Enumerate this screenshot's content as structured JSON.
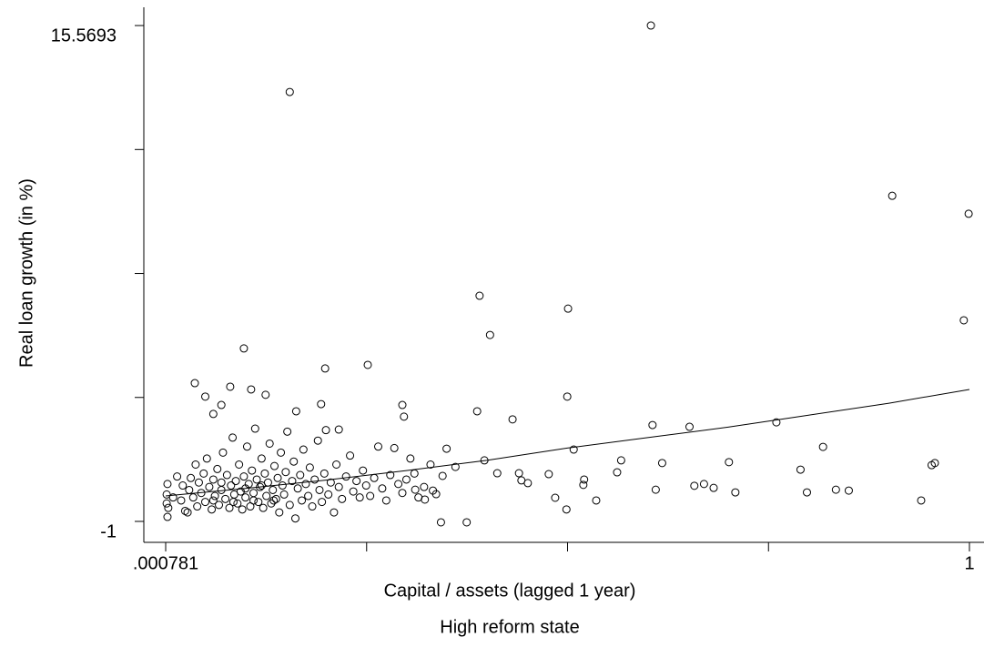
{
  "chart_data": {
    "type": "scatter",
    "y_label": "Real loan growth (in %)",
    "x_label": "Capital / assets (lagged 1 year)",
    "subtitle": "High reform state",
    "color": "#000000",
    "xlim": [
      -0.0264,
      1.0181
    ],
    "ylim": [
      -1.7,
      16.18
    ],
    "xticks": [
      {
        "value": 0.000781,
        "label": ".000781"
      },
      {
        "value": 0.250586,
        "label": null
      },
      {
        "value": 0.500391,
        "label": null
      },
      {
        "value": 0.750195,
        "label": null
      },
      1
    ],
    "yticks": [
      -1,
      {
        "value": 3.142325,
        "label": null
      },
      {
        "value": 7.28465,
        "label": null
      },
      {
        "value": 11.426975,
        "label": null
      },
      15.5693
    ],
    "points": {
      "x": [
        0.604,
        0.155,
        0.904,
        0.999,
        0.993,
        0.391,
        0.501,
        0.404,
        0.098,
        0.199,
        0.252,
        0.037,
        0.081,
        0.107,
        0.05,
        0.125,
        0.5,
        0.194,
        0.295,
        0.388,
        0.07,
        0.297,
        0.06,
        0.163,
        0.432,
        0.76,
        0.606,
        0.652,
        0.216,
        0.818,
        0.35,
        0.508,
        0.567,
        0.618,
        0.701,
        0.397,
        0.957,
        0.953,
        0.79,
        0.562,
        0.477,
        0.44,
        0.443,
        0.451,
        0.521,
        0.52,
        0.413,
        0.345,
        0.658,
        0.67,
        0.682,
        0.61,
        0.709,
        0.798,
        0.834,
        0.85,
        0.94,
        0.536,
        0.485,
        0.499,
        0.343,
        0.375,
        0.323,
        0.333,
        0.337,
        0.361,
        0.311,
        0.002,
        0.002,
        0.003,
        0.003,
        0.004,
        0.01,
        0.015,
        0.02,
        0.022,
        0.025,
        0.028,
        0.03,
        0.032,
        0.035,
        0.038,
        0.04,
        0.042,
        0.045,
        0.048,
        0.05,
        0.052,
        0.055,
        0.058,
        0.06,
        0.062,
        0.065,
        0.067,
        0.07,
        0.072,
        0.075,
        0.077,
        0.08,
        0.082,
        0.084,
        0.086,
        0.088,
        0.09,
        0.092,
        0.094,
        0.096,
        0.098,
        0.1,
        0.102,
        0.104,
        0.106,
        0.108,
        0.11,
        0.112,
        0.114,
        0.116,
        0.118,
        0.12,
        0.122,
        0.124,
        0.126,
        0.128,
        0.13,
        0.132,
        0.134,
        0.136,
        0.138,
        0.14,
        0.142,
        0.144,
        0.146,
        0.148,
        0.15,
        0.152,
        0.155,
        0.158,
        0.16,
        0.162,
        0.165,
        0.168,
        0.17,
        0.172,
        0.175,
        0.178,
        0.18,
        0.183,
        0.186,
        0.19,
        0.192,
        0.195,
        0.198,
        0.2,
        0.203,
        0.206,
        0.21,
        0.213,
        0.216,
        0.22,
        0.225,
        0.23,
        0.234,
        0.238,
        0.242,
        0.246,
        0.25,
        0.255,
        0.26,
        0.265,
        0.27,
        0.275,
        0.28,
        0.285,
        0.29,
        0.295,
        0.3,
        0.305,
        0.31,
        0.315,
        0.322,
        0.33,
        0.06,
        0.085,
        0.11,
        0.135,
        0.1,
        0.07,
        0.12
      ],
      "y": [
        15.57,
        13.35,
        9.88,
        9.28,
        5.72,
        6.54,
        6.11,
        5.23,
        4.78,
        4.11,
        4.23,
        3.62,
        3.5,
        3.41,
        3.17,
        3.23,
        3.17,
        2.92,
        2.89,
        2.68,
        2.89,
        2.5,
        2.59,
        2.68,
        2.41,
        2.31,
        2.22,
        2.16,
        2.07,
        1.49,
        1.43,
        1.4,
        1.04,
        0.95,
        0.98,
        1.04,
        0.95,
        0.88,
        0.73,
        0.64,
        0.58,
        0.61,
        0.37,
        0.28,
        0.4,
        0.22,
        0.61,
        0.52,
        0.19,
        0.25,
        0.12,
        0.06,
        -0.03,
        -0.03,
        0.06,
        0.03,
        -0.3,
        -0.3,
        -0.21,
        -0.6,
        -1.03,
        -1.03,
        -0.27,
        0.03,
        -0.09,
        0.82,
        0.06,
        -0.1,
        -0.4,
        -0.85,
        0.25,
        -0.55,
        -0.2,
        0.5,
        -0.3,
        0.2,
        -0.65,
        -0.7,
        0.05,
        0.45,
        -0.2,
        0.9,
        -0.5,
        0.3,
        -0.05,
        0.6,
        -0.35,
        1.1,
        0.15,
        -0.6,
        0.4,
        -0.15,
        0.75,
        -0.45,
        0.05,
        1.3,
        -0.25,
        0.55,
        -0.55,
        0.2,
        1.8,
        -0.1,
        0.35,
        -0.4,
        0.9,
        0.0,
        -0.6,
        0.5,
        -0.2,
        1.5,
        0.25,
        -0.5,
        0.7,
        -0.05,
        2.1,
        0.4,
        -0.35,
        0.15,
        1.1,
        -0.55,
        0.6,
        -0.15,
        0.3,
        1.6,
        -0.4,
        0.05,
        0.85,
        -0.25,
        0.45,
        -0.7,
        1.3,
        0.2,
        -0.1,
        0.65,
        2.0,
        -0.45,
        0.35,
        1.0,
        -0.9,
        0.1,
        0.55,
        -0.3,
        1.4,
        0.25,
        -0.15,
        0.8,
        -0.5,
        0.4,
        1.7,
        0.05,
        -0.35,
        0.6,
        2.05,
        -0.1,
        0.3,
        -0.7,
        0.9,
        0.15,
        -0.25,
        0.5,
        1.2,
        0.0,
        0.35,
        -0.2,
        0.7,
        0.2,
        -0.15,
        0.45,
        1.5,
        0.1,
        -0.3,
        0.55,
        1.45,
        0.25,
        -0.05,
        0.4,
        1.1,
        0.6,
        -0.2,
        0.15,
        0.9,
        -0.3,
        -0.35,
        -0.3,
        -0.3,
        0.1,
        0.3,
        0.2
      ]
    },
    "fit": {
      "x": [
        0.0008,
        0.1,
        0.2,
        0.3,
        0.4,
        0.5,
        0.6,
        0.7,
        0.8,
        0.9,
        1.0
      ],
      "y": [
        -0.15,
        0.1,
        0.38,
        0.7,
        1.04,
        1.45,
        1.8,
        2.15,
        2.55,
        2.95,
        3.41
      ]
    }
  }
}
